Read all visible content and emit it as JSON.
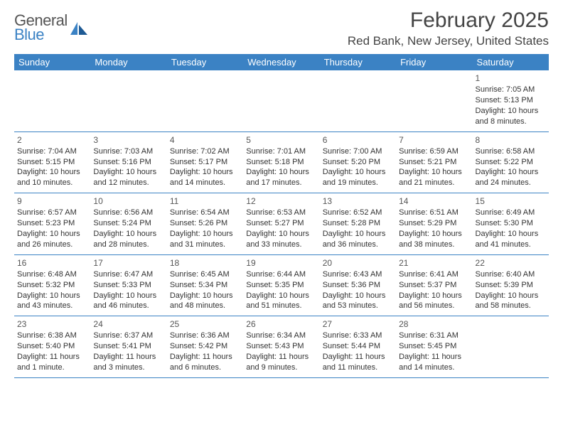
{
  "logo": {
    "text1": "General",
    "text2": "Blue"
  },
  "header": {
    "month_title": "February 2025",
    "location": "Red Bank, New Jersey, United States"
  },
  "colors": {
    "header_bg": "#3b82c4",
    "header_text": "#ffffff",
    "cell_border": "#3b82c4",
    "body_text": "#333333"
  },
  "weekdays": [
    "Sunday",
    "Monday",
    "Tuesday",
    "Wednesday",
    "Thursday",
    "Friday",
    "Saturday"
  ],
  "weeks": [
    [
      null,
      null,
      null,
      null,
      null,
      null,
      {
        "d": "1",
        "l1": "Sunrise: 7:05 AM",
        "l2": "Sunset: 5:13 PM",
        "l3": "Daylight: 10 hours",
        "l4": "and 8 minutes."
      }
    ],
    [
      {
        "d": "2",
        "l1": "Sunrise: 7:04 AM",
        "l2": "Sunset: 5:15 PM",
        "l3": "Daylight: 10 hours",
        "l4": "and 10 minutes."
      },
      {
        "d": "3",
        "l1": "Sunrise: 7:03 AM",
        "l2": "Sunset: 5:16 PM",
        "l3": "Daylight: 10 hours",
        "l4": "and 12 minutes."
      },
      {
        "d": "4",
        "l1": "Sunrise: 7:02 AM",
        "l2": "Sunset: 5:17 PM",
        "l3": "Daylight: 10 hours",
        "l4": "and 14 minutes."
      },
      {
        "d": "5",
        "l1": "Sunrise: 7:01 AM",
        "l2": "Sunset: 5:18 PM",
        "l3": "Daylight: 10 hours",
        "l4": "and 17 minutes."
      },
      {
        "d": "6",
        "l1": "Sunrise: 7:00 AM",
        "l2": "Sunset: 5:20 PM",
        "l3": "Daylight: 10 hours",
        "l4": "and 19 minutes."
      },
      {
        "d": "7",
        "l1": "Sunrise: 6:59 AM",
        "l2": "Sunset: 5:21 PM",
        "l3": "Daylight: 10 hours",
        "l4": "and 21 minutes."
      },
      {
        "d": "8",
        "l1": "Sunrise: 6:58 AM",
        "l2": "Sunset: 5:22 PM",
        "l3": "Daylight: 10 hours",
        "l4": "and 24 minutes."
      }
    ],
    [
      {
        "d": "9",
        "l1": "Sunrise: 6:57 AM",
        "l2": "Sunset: 5:23 PM",
        "l3": "Daylight: 10 hours",
        "l4": "and 26 minutes."
      },
      {
        "d": "10",
        "l1": "Sunrise: 6:56 AM",
        "l2": "Sunset: 5:24 PM",
        "l3": "Daylight: 10 hours",
        "l4": "and 28 minutes."
      },
      {
        "d": "11",
        "l1": "Sunrise: 6:54 AM",
        "l2": "Sunset: 5:26 PM",
        "l3": "Daylight: 10 hours",
        "l4": "and 31 minutes."
      },
      {
        "d": "12",
        "l1": "Sunrise: 6:53 AM",
        "l2": "Sunset: 5:27 PM",
        "l3": "Daylight: 10 hours",
        "l4": "and 33 minutes."
      },
      {
        "d": "13",
        "l1": "Sunrise: 6:52 AM",
        "l2": "Sunset: 5:28 PM",
        "l3": "Daylight: 10 hours",
        "l4": "and 36 minutes."
      },
      {
        "d": "14",
        "l1": "Sunrise: 6:51 AM",
        "l2": "Sunset: 5:29 PM",
        "l3": "Daylight: 10 hours",
        "l4": "and 38 minutes."
      },
      {
        "d": "15",
        "l1": "Sunrise: 6:49 AM",
        "l2": "Sunset: 5:30 PM",
        "l3": "Daylight: 10 hours",
        "l4": "and 41 minutes."
      }
    ],
    [
      {
        "d": "16",
        "l1": "Sunrise: 6:48 AM",
        "l2": "Sunset: 5:32 PM",
        "l3": "Daylight: 10 hours",
        "l4": "and 43 minutes."
      },
      {
        "d": "17",
        "l1": "Sunrise: 6:47 AM",
        "l2": "Sunset: 5:33 PM",
        "l3": "Daylight: 10 hours",
        "l4": "and 46 minutes."
      },
      {
        "d": "18",
        "l1": "Sunrise: 6:45 AM",
        "l2": "Sunset: 5:34 PM",
        "l3": "Daylight: 10 hours",
        "l4": "and 48 minutes."
      },
      {
        "d": "19",
        "l1": "Sunrise: 6:44 AM",
        "l2": "Sunset: 5:35 PM",
        "l3": "Daylight: 10 hours",
        "l4": "and 51 minutes."
      },
      {
        "d": "20",
        "l1": "Sunrise: 6:43 AM",
        "l2": "Sunset: 5:36 PM",
        "l3": "Daylight: 10 hours",
        "l4": "and 53 minutes."
      },
      {
        "d": "21",
        "l1": "Sunrise: 6:41 AM",
        "l2": "Sunset: 5:37 PM",
        "l3": "Daylight: 10 hours",
        "l4": "and 56 minutes."
      },
      {
        "d": "22",
        "l1": "Sunrise: 6:40 AM",
        "l2": "Sunset: 5:39 PM",
        "l3": "Daylight: 10 hours",
        "l4": "and 58 minutes."
      }
    ],
    [
      {
        "d": "23",
        "l1": "Sunrise: 6:38 AM",
        "l2": "Sunset: 5:40 PM",
        "l3": "Daylight: 11 hours",
        "l4": "and 1 minute."
      },
      {
        "d": "24",
        "l1": "Sunrise: 6:37 AM",
        "l2": "Sunset: 5:41 PM",
        "l3": "Daylight: 11 hours",
        "l4": "and 3 minutes."
      },
      {
        "d": "25",
        "l1": "Sunrise: 6:36 AM",
        "l2": "Sunset: 5:42 PM",
        "l3": "Daylight: 11 hours",
        "l4": "and 6 minutes."
      },
      {
        "d": "26",
        "l1": "Sunrise: 6:34 AM",
        "l2": "Sunset: 5:43 PM",
        "l3": "Daylight: 11 hours",
        "l4": "and 9 minutes."
      },
      {
        "d": "27",
        "l1": "Sunrise: 6:33 AM",
        "l2": "Sunset: 5:44 PM",
        "l3": "Daylight: 11 hours",
        "l4": "and 11 minutes."
      },
      {
        "d": "28",
        "l1": "Sunrise: 6:31 AM",
        "l2": "Sunset: 5:45 PM",
        "l3": "Daylight: 11 hours",
        "l4": "and 14 minutes."
      },
      null
    ]
  ]
}
